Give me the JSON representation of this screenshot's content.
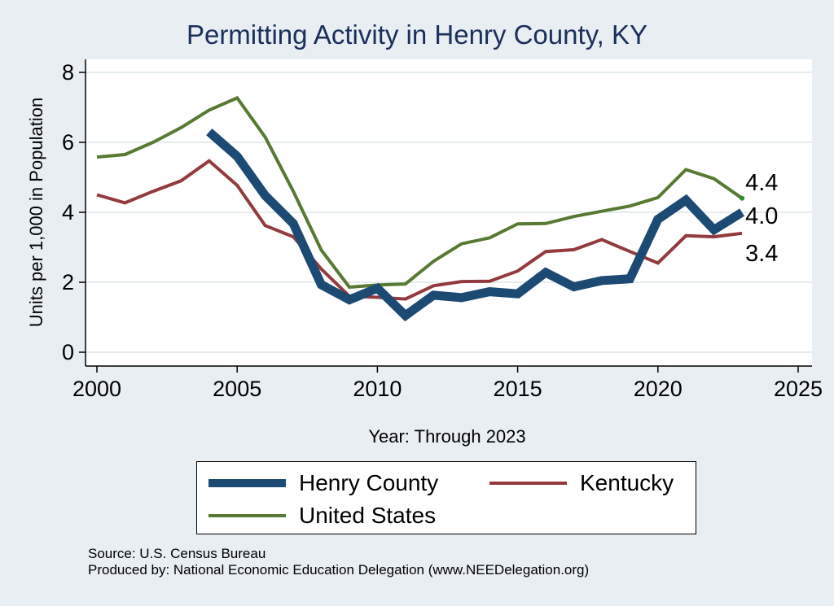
{
  "title": "Permitting Activity in Henry County, KY",
  "source_line": "Source: U.S. Census Bureau",
  "produced_line": "Produced by: National Economic Education Delegation (www.NEEDelegation.org)",
  "colors": {
    "background": "#e9eef3",
    "plot_area": "#ffffff",
    "title": "#1a2f5a",
    "grid": "#dbe6e9"
  },
  "legend": {
    "items": [
      {
        "label": "Henry County",
        "color": "#1c4a73"
      },
      {
        "label": "Kentucky",
        "color": "#933a3f"
      },
      {
        "label": "United States",
        "color": "#577932"
      }
    ]
  },
  "chart_data": {
    "type": "line",
    "title": "Permitting Activity in Henry County, KY",
    "xlabel": "Year: Through 2023",
    "ylabel": "Units per 1,000 in Population",
    "xlim": [
      2000,
      2025
    ],
    "ylim": [
      0,
      8
    ],
    "xticks": [
      2000,
      2005,
      2010,
      2015,
      2020,
      2025
    ],
    "yticks": [
      0,
      2,
      4,
      6,
      8
    ],
    "grid": true,
    "legend_position": "bottom",
    "series": [
      {
        "name": "United States",
        "color": "#577932",
        "width": 4,
        "points": [
          [
            2000,
            5.58
          ],
          [
            2001,
            5.65
          ],
          [
            2002,
            6.0
          ],
          [
            2003,
            6.42
          ],
          [
            2004,
            6.92
          ],
          [
            2005,
            7.27
          ],
          [
            2006,
            6.15
          ],
          [
            2007,
            4.6
          ],
          [
            2008,
            2.92
          ],
          [
            2009,
            1.86
          ],
          [
            2010,
            1.92
          ],
          [
            2011,
            1.95
          ],
          [
            2012,
            2.6
          ],
          [
            2013,
            3.1
          ],
          [
            2014,
            3.27
          ],
          [
            2015,
            3.67
          ],
          [
            2016,
            3.68
          ],
          [
            2017,
            3.88
          ],
          [
            2018,
            4.03
          ],
          [
            2019,
            4.18
          ],
          [
            2020,
            4.42
          ],
          [
            2021,
            5.22
          ],
          [
            2022,
            4.96
          ],
          [
            2023,
            4.4
          ]
        ],
        "end_label": "4.4"
      },
      {
        "name": "Kentucky",
        "color": "#933a3f",
        "width": 4,
        "points": [
          [
            2000,
            4.5
          ],
          [
            2001,
            4.27
          ],
          [
            2002,
            4.6
          ],
          [
            2003,
            4.9
          ],
          [
            2004,
            5.47
          ],
          [
            2005,
            4.77
          ],
          [
            2006,
            3.62
          ],
          [
            2007,
            3.3
          ],
          [
            2008,
            2.38
          ],
          [
            2009,
            1.6
          ],
          [
            2010,
            1.57
          ],
          [
            2011,
            1.52
          ],
          [
            2012,
            1.9
          ],
          [
            2013,
            2.02
          ],
          [
            2014,
            2.03
          ],
          [
            2015,
            2.32
          ],
          [
            2016,
            2.88
          ],
          [
            2017,
            2.93
          ],
          [
            2018,
            3.22
          ],
          [
            2019,
            2.88
          ],
          [
            2020,
            2.55
          ],
          [
            2021,
            3.33
          ],
          [
            2022,
            3.3
          ],
          [
            2023,
            3.4
          ]
        ],
        "end_label": "3.4"
      },
      {
        "name": "Henry County",
        "color": "#1c4a73",
        "width": 11,
        "points": [
          [
            2004,
            6.3
          ],
          [
            2005,
            5.6
          ],
          [
            2006,
            4.48
          ],
          [
            2007,
            3.68
          ],
          [
            2008,
            1.93
          ],
          [
            2009,
            1.5
          ],
          [
            2010,
            1.83
          ],
          [
            2011,
            1.05
          ],
          [
            2012,
            1.63
          ],
          [
            2013,
            1.56
          ],
          [
            2014,
            1.73
          ],
          [
            2015,
            1.67
          ],
          [
            2016,
            2.28
          ],
          [
            2017,
            1.87
          ],
          [
            2018,
            2.05
          ],
          [
            2019,
            2.1
          ],
          [
            2020,
            3.8
          ],
          [
            2021,
            4.35
          ],
          [
            2022,
            3.5
          ],
          [
            2023,
            4.0
          ]
        ],
        "end_label": "4.0"
      }
    ]
  }
}
